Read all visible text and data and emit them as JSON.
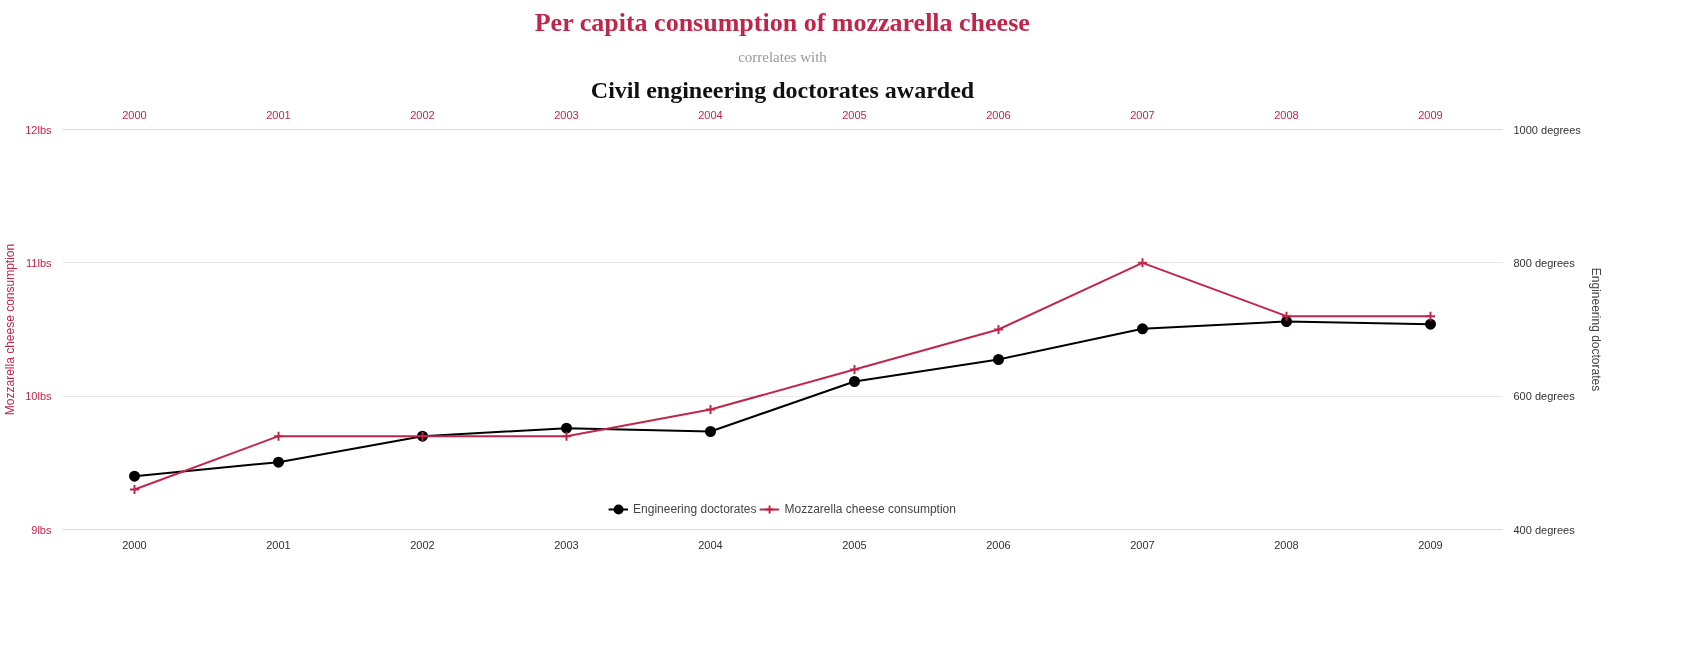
{
  "chart_data": {
    "type": "line",
    "title": "Per capita consumption of mozzarella cheese",
    "subtitle": "correlates with",
    "annotations": [
      "Civil engineering doctorates awarded"
    ],
    "ylabel": "Mozzarella cheese consumption",
    "y2label": "Engineering doctorates",
    "categories": [
      "2000",
      "2001",
      "2002",
      "2003",
      "2004",
      "2005",
      "2006",
      "2007",
      "2008",
      "2009"
    ],
    "series": [
      {
        "name": "Engineering doctorates",
        "color": "#000000",
        "axis": "y2",
        "marker": "circle",
        "values": [
          480,
          501,
          540,
          552,
          547,
          622,
          655,
          701,
          712,
          708
        ]
      },
      {
        "name": "Mozzarella cheese consumption",
        "color": "#c0264a",
        "marker": "cross",
        "values": [
          9.3,
          9.7,
          9.7,
          9.7,
          9.9,
          10.2,
          10.5,
          11.0,
          10.6,
          10.6
        ]
      }
    ],
    "ylim": [
      9,
      12
    ],
    "yticks": [
      {
        "value": 9,
        "label": "9lbs"
      },
      {
        "value": 10,
        "label": "10lbs"
      },
      {
        "value": 11,
        "label": "11lbs"
      },
      {
        "value": 12,
        "label": "12lbs"
      }
    ],
    "y2lim": [
      400,
      1000
    ],
    "y2ticks": [
      {
        "value": 400,
        "label": "400 degrees"
      },
      {
        "value": 600,
        "label": "600 degrees"
      },
      {
        "value": 800,
        "label": "800 degrees"
      },
      {
        "value": 1000,
        "label": "1000 degrees"
      }
    ],
    "grid": "y",
    "legend": "bottom"
  }
}
